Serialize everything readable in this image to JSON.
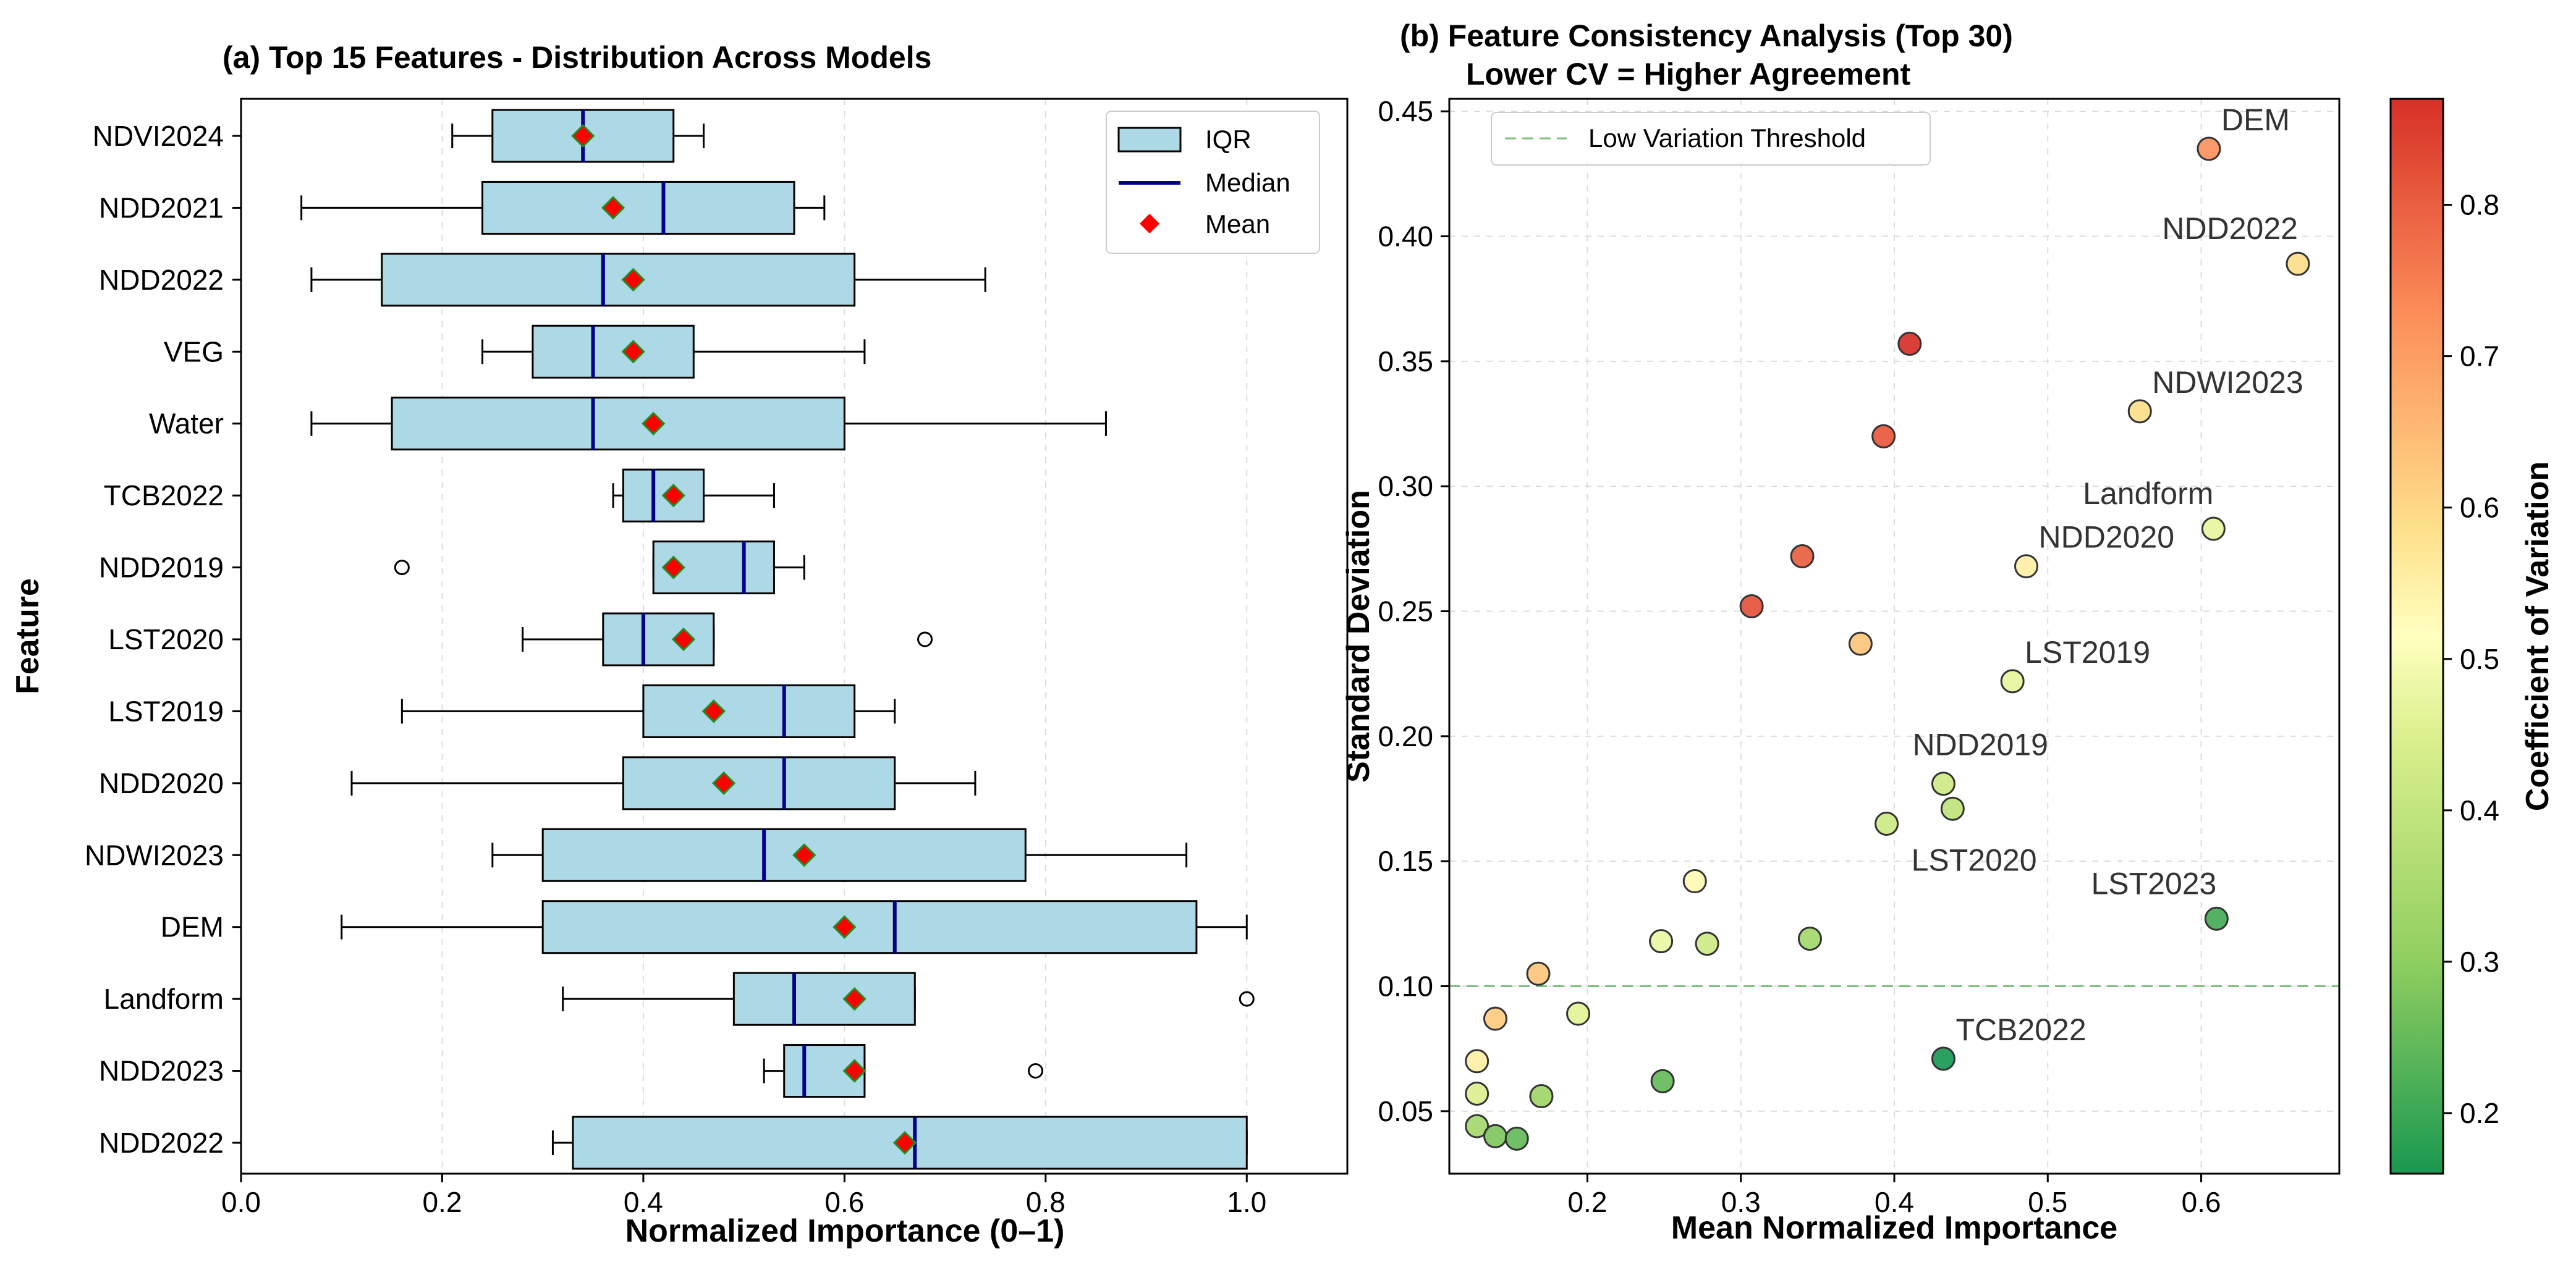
{
  "colors": {
    "box_fill": "#add8e6",
    "median": "#00008b",
    "mean": "#ff0000",
    "mean_edge": "#228b22",
    "threshold": "#7fbf7f",
    "grid": "#dddddd"
  },
  "chart_data": [
    {
      "type": "box",
      "orientation": "horizontal",
      "title": "(a) Top 15 Features - Distribution Across Models",
      "xlabel": "Normalized Importance (0–1)",
      "ylabel": "Feature",
      "xlim": [
        0.0,
        1.1
      ],
      "xticks": [
        0.0,
        0.2,
        0.4,
        0.6,
        0.8,
        1.0
      ],
      "xtick_labels": [
        "0.0",
        "0.2",
        "0.4",
        "0.6",
        "0.8",
        "1.0"
      ],
      "grid": true,
      "legend": {
        "position": "top-right",
        "entries": [
          "IQR",
          "Median",
          "Mean"
        ]
      },
      "categories": [
        "NDVI2024",
        "NDD2021",
        "NDD2022",
        "VEG",
        "Water",
        "TCB2022",
        "NDD2019",
        "LST2020",
        "LST2019",
        "NDD2020",
        "NDWI2023",
        "DEM",
        "Landform",
        "NDD2023",
        "NDD2022"
      ],
      "boxes": [
        {
          "whisker_low": 0.21,
          "q1": 0.25,
          "median": 0.34,
          "q3": 0.43,
          "whisker_high": 0.46,
          "mean": 0.34,
          "outliers": []
        },
        {
          "whisker_low": 0.06,
          "q1": 0.24,
          "median": 0.42,
          "q3": 0.55,
          "whisker_high": 0.58,
          "mean": 0.37,
          "outliers": []
        },
        {
          "whisker_low": 0.07,
          "q1": 0.14,
          "median": 0.36,
          "q3": 0.61,
          "whisker_high": 0.74,
          "mean": 0.39,
          "outliers": []
        },
        {
          "whisker_low": 0.24,
          "q1": 0.29,
          "median": 0.35,
          "q3": 0.45,
          "whisker_high": 0.62,
          "mean": 0.39,
          "outliers": []
        },
        {
          "whisker_low": 0.07,
          "q1": 0.15,
          "median": 0.35,
          "q3": 0.6,
          "whisker_high": 0.86,
          "mean": 0.41,
          "outliers": []
        },
        {
          "whisker_low": 0.37,
          "q1": 0.38,
          "median": 0.41,
          "q3": 0.46,
          "whisker_high": 0.53,
          "mean": 0.43,
          "outliers": []
        },
        {
          "whisker_low": 0.41,
          "q1": 0.41,
          "median": 0.5,
          "q3": 0.53,
          "whisker_high": 0.56,
          "mean": 0.43,
          "outliers": [
            0.16
          ]
        },
        {
          "whisker_low": 0.28,
          "q1": 0.36,
          "median": 0.4,
          "q3": 0.47,
          "whisker_high": 0.47,
          "mean": 0.44,
          "outliers": [
            0.68
          ]
        },
        {
          "whisker_low": 0.16,
          "q1": 0.4,
          "median": 0.54,
          "q3": 0.61,
          "whisker_high": 0.65,
          "mean": 0.47,
          "outliers": []
        },
        {
          "whisker_low": 0.11,
          "q1": 0.38,
          "median": 0.54,
          "q3": 0.65,
          "whisker_high": 0.73,
          "mean": 0.48,
          "outliers": []
        },
        {
          "whisker_low": 0.25,
          "q1": 0.3,
          "median": 0.52,
          "q3": 0.78,
          "whisker_high": 0.94,
          "mean": 0.56,
          "outliers": []
        },
        {
          "whisker_low": 0.1,
          "q1": 0.3,
          "median": 0.65,
          "q3": 0.95,
          "whisker_high": 1.0,
          "mean": 0.6,
          "outliers": []
        },
        {
          "whisker_low": 0.32,
          "q1": 0.49,
          "median": 0.55,
          "q3": 0.67,
          "whisker_high": 0.67,
          "mean": 0.61,
          "outliers": [
            1.0
          ]
        },
        {
          "whisker_low": 0.52,
          "q1": 0.54,
          "median": 0.56,
          "q3": 0.62,
          "whisker_high": 0.62,
          "mean": 0.61,
          "outliers": [
            0.79
          ]
        },
        {
          "whisker_low": 0.31,
          "q1": 0.33,
          "median": 0.67,
          "q3": 1.0,
          "whisker_high": 1.0,
          "mean": 0.66,
          "outliers": []
        }
      ]
    },
    {
      "type": "scatter",
      "title": "(b) Feature Consistency Analysis (Top 30)",
      "subtitle": "Lower CV = Higher Agreement",
      "xlabel": "Mean Normalized Importance",
      "ylabel": "Standard Deviation",
      "xlim": [
        0.11,
        0.69
      ],
      "ylim": [
        0.025,
        0.455
      ],
      "xticks": [
        0.2,
        0.3,
        0.4,
        0.5,
        0.6
      ],
      "xtick_labels": [
        "0.2",
        "0.3",
        "0.4",
        "0.5",
        "0.6"
      ],
      "yticks": [
        0.05,
        0.1,
        0.15,
        0.2,
        0.25,
        0.3,
        0.35,
        0.4,
        0.45
      ],
      "ytick_labels": [
        "0.05",
        "0.10",
        "0.15",
        "0.20",
        "0.25",
        "0.30",
        "0.35",
        "0.40",
        "0.45"
      ],
      "grid": true,
      "threshold": {
        "y": 0.1,
        "label": "Low Variation Threshold"
      },
      "legend": {
        "position": "top-left"
      },
      "colorbar": {
        "label": "Coefficient of Variation",
        "range": [
          0.16,
          0.87
        ],
        "ticks": [
          0.2,
          0.3,
          0.4,
          0.5,
          0.6,
          0.7,
          0.8
        ],
        "tick_labels": [
          "0.2",
          "0.3",
          "0.4",
          "0.5",
          "0.6",
          "0.7",
          "0.8"
        ],
        "colormap": "RdYlGn_r"
      },
      "points": [
        {
          "x": 0.605,
          "y": 0.435,
          "cv": 0.72,
          "label": "DEM"
        },
        {
          "x": 0.663,
          "y": 0.389,
          "cv": 0.59,
          "label": "NDD2022"
        },
        {
          "x": 0.41,
          "y": 0.357,
          "cv": 0.87,
          "label": ""
        },
        {
          "x": 0.56,
          "y": 0.33,
          "cv": 0.59,
          "label": "NDWI2023"
        },
        {
          "x": 0.393,
          "y": 0.32,
          "cv": 0.81,
          "label": ""
        },
        {
          "x": 0.608,
          "y": 0.283,
          "cv": 0.47,
          "label": "Landform"
        },
        {
          "x": 0.34,
          "y": 0.272,
          "cv": 0.8,
          "label": ""
        },
        {
          "x": 0.486,
          "y": 0.268,
          "cv": 0.55,
          "label": "NDD2020"
        },
        {
          "x": 0.307,
          "y": 0.252,
          "cv": 0.82,
          "label": ""
        },
        {
          "x": 0.378,
          "y": 0.237,
          "cv": 0.63,
          "label": ""
        },
        {
          "x": 0.477,
          "y": 0.222,
          "cv": 0.47,
          "label": "LST2019"
        },
        {
          "x": 0.432,
          "y": 0.181,
          "cv": 0.42,
          "label": "NDD2019"
        },
        {
          "x": 0.438,
          "y": 0.171,
          "cv": 0.39,
          "label": ""
        },
        {
          "x": 0.395,
          "y": 0.165,
          "cv": 0.42,
          "label": "LST2020"
        },
        {
          "x": 0.27,
          "y": 0.142,
          "cv": 0.53,
          "label": ""
        },
        {
          "x": 0.61,
          "y": 0.127,
          "cv": 0.21,
          "label": "LST2023"
        },
        {
          "x": 0.248,
          "y": 0.118,
          "cv": 0.48,
          "label": ""
        },
        {
          "x": 0.278,
          "y": 0.117,
          "cv": 0.42,
          "label": ""
        },
        {
          "x": 0.345,
          "y": 0.119,
          "cv": 0.34,
          "label": ""
        },
        {
          "x": 0.168,
          "y": 0.105,
          "cv": 0.63,
          "label": ""
        },
        {
          "x": 0.14,
          "y": 0.087,
          "cv": 0.62,
          "label": ""
        },
        {
          "x": 0.194,
          "y": 0.089,
          "cv": 0.46,
          "label": ""
        },
        {
          "x": 0.432,
          "y": 0.071,
          "cv": 0.16,
          "label": "TCB2022"
        },
        {
          "x": 0.128,
          "y": 0.07,
          "cv": 0.55,
          "label": ""
        },
        {
          "x": 0.249,
          "y": 0.062,
          "cv": 0.25,
          "label": ""
        },
        {
          "x": 0.128,
          "y": 0.057,
          "cv": 0.45,
          "label": ""
        },
        {
          "x": 0.17,
          "y": 0.056,
          "cv": 0.33,
          "label": ""
        },
        {
          "x": 0.128,
          "y": 0.044,
          "cv": 0.34,
          "label": ""
        },
        {
          "x": 0.14,
          "y": 0.04,
          "cv": 0.28,
          "label": ""
        },
        {
          "x": 0.154,
          "y": 0.039,
          "cv": 0.25,
          "label": ""
        }
      ]
    }
  ]
}
